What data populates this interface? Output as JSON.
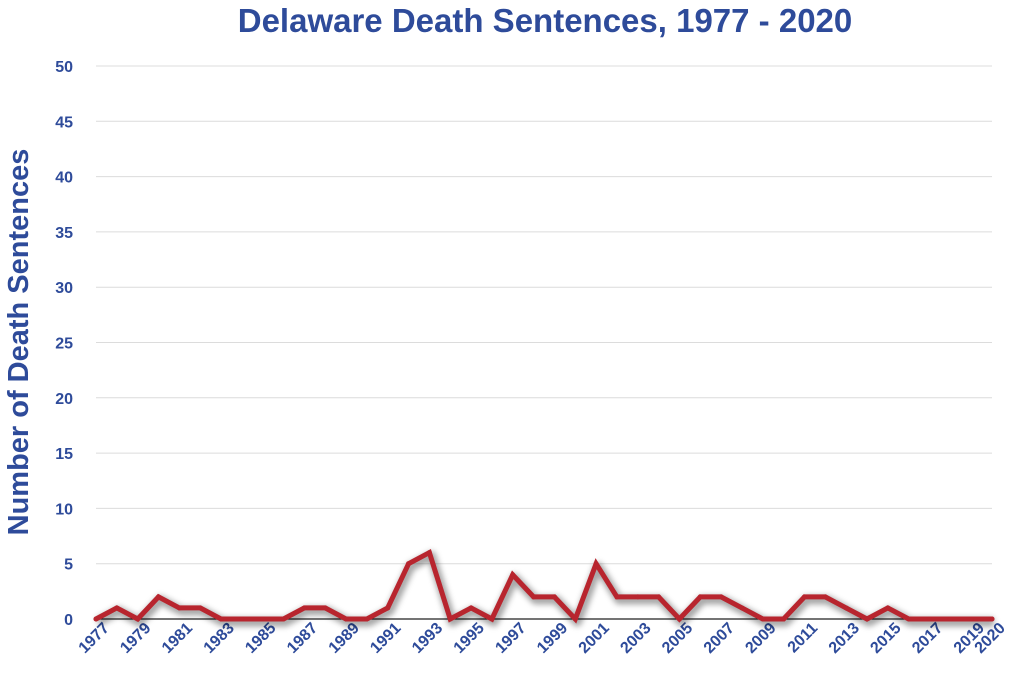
{
  "chart_data": {
    "type": "line",
    "title": "Delaware Death Sentences, 1977 - 2020",
    "xlabel": "",
    "ylabel": "Number of Death Sentences",
    "ylim": [
      0,
      50
    ],
    "yticks": [
      0,
      5,
      10,
      15,
      20,
      25,
      30,
      35,
      40,
      45,
      50
    ],
    "xticks": [
      1977,
      1979,
      1981,
      1983,
      1985,
      1987,
      1989,
      1991,
      1993,
      1995,
      1997,
      1999,
      2001,
      2003,
      2005,
      2007,
      2009,
      2011,
      2013,
      2015,
      2017,
      2019,
      2020
    ],
    "grid": true,
    "legend": "none",
    "colors": {
      "line": "#b8252e",
      "text": "#2e4b9a",
      "grid": "#dcdcdc"
    },
    "x": [
      1977,
      1978,
      1979,
      1980,
      1981,
      1982,
      1983,
      1984,
      1985,
      1986,
      1987,
      1988,
      1989,
      1990,
      1991,
      1992,
      1993,
      1994,
      1995,
      1996,
      1997,
      1998,
      1999,
      2000,
      2001,
      2002,
      2003,
      2004,
      2005,
      2006,
      2007,
      2008,
      2009,
      2010,
      2011,
      2012,
      2013,
      2014,
      2015,
      2016,
      2017,
      2018,
      2019,
      2020
    ],
    "values": [
      0,
      1,
      0,
      2,
      1,
      1,
      0,
      0,
      0,
      0,
      1,
      1,
      0,
      0,
      1,
      5,
      6,
      0,
      1,
      0,
      4,
      2,
      2,
      0,
      5,
      2,
      2,
      2,
      0,
      2,
      2,
      1,
      0,
      0,
      2,
      2,
      1,
      0,
      1,
      0,
      0,
      0,
      0,
      0
    ]
  }
}
